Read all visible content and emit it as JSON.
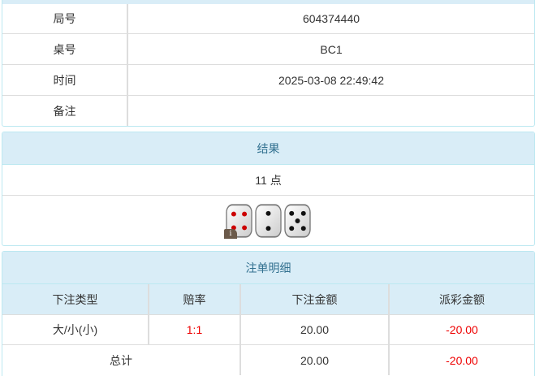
{
  "info": [
    {
      "label": "局号",
      "value": "604374440"
    },
    {
      "label": "桌号",
      "value": "BC1"
    },
    {
      "label": "时间",
      "value": "2025-03-08 22:49:42"
    },
    {
      "label": "备注",
      "value": ""
    }
  ],
  "result": {
    "title": "结果",
    "points": "11 点",
    "dice": [
      4,
      2,
      5
    ],
    "info_badge": "i"
  },
  "bets": {
    "title": "注单明细",
    "columns": [
      "下注类型",
      "赔率",
      "下注金额",
      "派彩金额"
    ],
    "rows": [
      {
        "type": "大/小(小)",
        "odds": "1:1",
        "amount": "20.00",
        "payout": "-20.00"
      }
    ],
    "total": {
      "label": "总计",
      "amount": "20.00",
      "payout": "-20.00"
    }
  },
  "colors": {
    "header_bg": "#d9edf7",
    "header_text": "#31708f",
    "negative": "#e00000"
  }
}
